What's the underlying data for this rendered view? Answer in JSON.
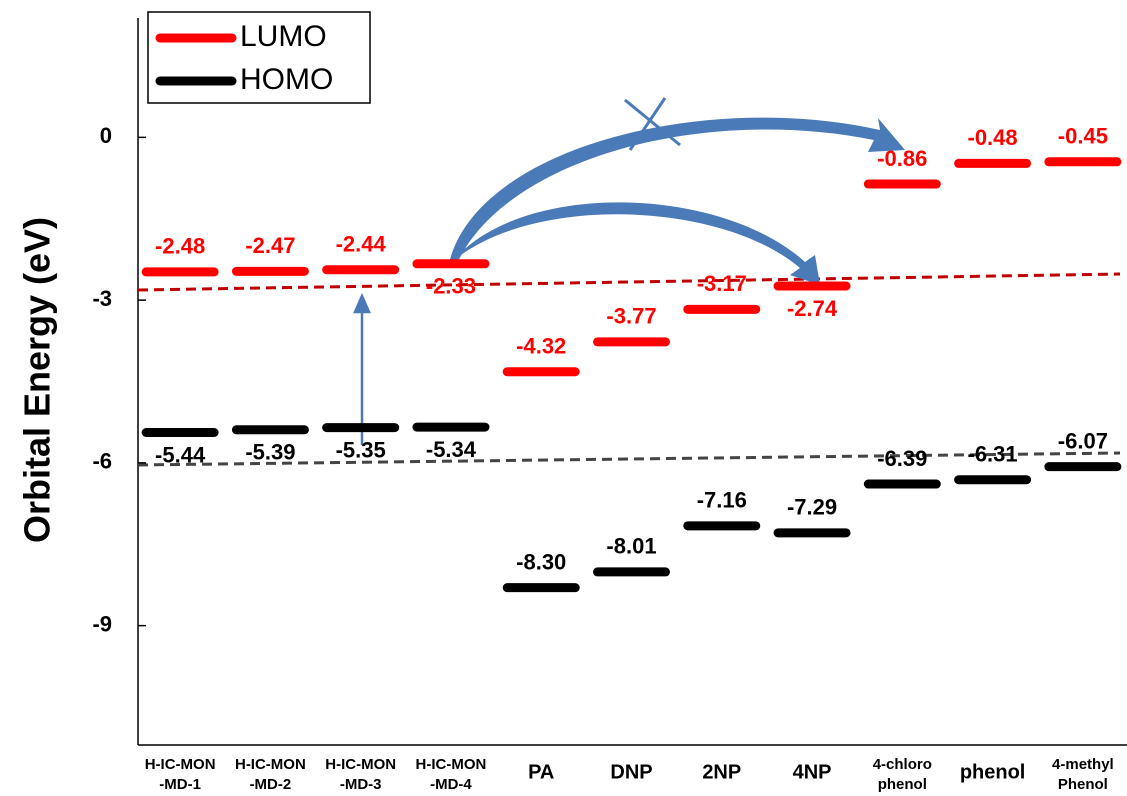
{
  "chart_data": {
    "type": "energy-levels",
    "y_label": "Orbital Energy (eV)",
    "categories": [
      "H-IC-MON -MD-1",
      "H-IC-MON -MD-2",
      "H-IC-MON -MD-3",
      "H-IC-MON -MD-4",
      "PA",
      "DNP",
      "2NP",
      "4NP",
      "4-chloro phenol",
      "phenol",
      "4-methyl Phenol"
    ],
    "series": [
      {
        "name": "LUMO",
        "color": "#ff0000",
        "values": [
          -2.48,
          -2.47,
          -2.44,
          -2.33,
          -4.32,
          -3.77,
          -3.17,
          -2.74,
          -0.86,
          -0.48,
          -0.45
        ],
        "value_labels": [
          "-2.48",
          "-2.47",
          "-2.44",
          "-2.33",
          "-4.32",
          "-3.77",
          "-3.17",
          "-2.74",
          "-0.86",
          "-0.48",
          "-0.45"
        ]
      },
      {
        "name": "HOMO",
        "color": "#000000",
        "values": [
          -5.44,
          -5.39,
          -5.35,
          -5.34,
          -8.3,
          -8.01,
          -7.16,
          -7.29,
          -6.39,
          -6.31,
          -6.07
        ],
        "value_labels": [
          "-5.44",
          "-5.39",
          "-5.35",
          "-5.34",
          "-8.30",
          "-8.01",
          "-7.16",
          "-7.29",
          "-6.39",
          "-6.31",
          "-6.07"
        ]
      }
    ],
    "ylim": [
      -11.2,
      2.2
    ],
    "yticks": [
      0,
      -3,
      -6,
      -9
    ],
    "legend": "top-left"
  }
}
